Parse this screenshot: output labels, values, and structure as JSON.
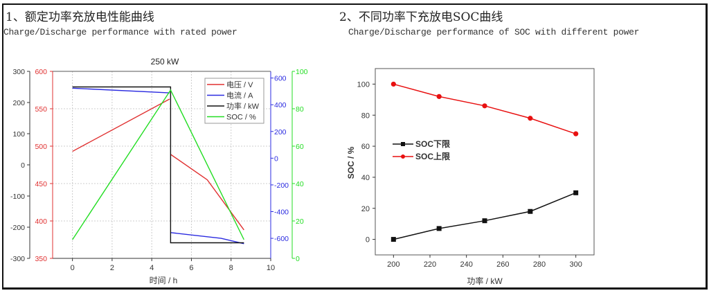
{
  "section1": {
    "title_cn": "1、额定功率充放电性能曲线",
    "title_en": "Charge/Discharge performance with rated power"
  },
  "section2": {
    "title_cn": "2、不同功率下充放电SOC曲线",
    "title_en": "Charge/Discharge performance of SOC with different power"
  },
  "colors": {
    "voltage": "#e03030",
    "current": "#2a2ae0",
    "power": "#111111",
    "soc": "#22dd22",
    "upper": "#e81010",
    "lower": "#111111"
  },
  "chart_data": [
    {
      "type": "line",
      "title": "250 kW",
      "xlabel": "时间 / h",
      "xlim": [
        -1,
        10
      ],
      "xticks": [
        "0",
        "2",
        "4",
        "6",
        "8",
        "10"
      ],
      "grid": true,
      "legend_position": "top-right",
      "axes": [
        {
          "id": "power",
          "side": "left-outer",
          "lim": [
            -300,
            300
          ],
          "ticks": [
            "300",
            "200",
            "100",
            "0",
            "-100",
            "-200",
            "-300"
          ]
        },
        {
          "id": "voltage",
          "side": "left-inner",
          "lim": [
            350,
            600
          ],
          "ticks": [
            "600",
            "550",
            "500",
            "450",
            "400",
            "350"
          ]
        },
        {
          "id": "current",
          "side": "right-inner",
          "lim": [
            -750,
            650
          ],
          "ticks": [
            "600",
            "400",
            "200",
            "0",
            "-200",
            "-400",
            "-600"
          ]
        },
        {
          "id": "soc",
          "side": "right-outer",
          "lim": [
            0,
            100
          ],
          "ticks": [
            "100",
            "80",
            "60",
            "40",
            "20",
            "0"
          ]
        }
      ],
      "series": [
        {
          "name": "电压 / V",
          "axis": "voltage",
          "segments": [
            [
              [
                0,
                493
              ],
              [
                4.9,
                563
              ]
            ],
            [
              [
                4.95,
                489
              ],
              [
                6.8,
                455
              ],
              [
                8.65,
                388
              ]
            ]
          ]
        },
        {
          "name": "电流 / A",
          "axis": "current",
          "segments": [
            [
              [
                0,
                524
              ],
              [
                4.9,
                489
              ]
            ],
            [
              [
                4.95,
                -557
              ],
              [
                7.5,
                -600
              ],
              [
                8.65,
                -640
              ]
            ]
          ]
        },
        {
          "name": "功率 / kW",
          "axis": "power",
          "segments": [
            [
              [
                0,
                250
              ],
              [
                4.95,
                250
              ],
              [
                4.95,
                -250
              ],
              [
                8.65,
                -250
              ]
            ]
          ]
        },
        {
          "name": "SOC / %",
          "axis": "soc",
          "segments": [
            [
              [
                0,
                10
              ],
              [
                4.95,
                90
              ],
              [
                8.65,
                10
              ]
            ]
          ]
        }
      ]
    },
    {
      "type": "line",
      "title": "",
      "xlabel": "功率 / kW",
      "ylabel": "SOC / %",
      "xlim": [
        190,
        310
      ],
      "ylim": [
        -10,
        110
      ],
      "xticks": [
        "200",
        "220",
        "240",
        "260",
        "280",
        "300"
      ],
      "yticks": [
        "0",
        "20",
        "40",
        "60",
        "80",
        "100"
      ],
      "grid": false,
      "legend_position": "center-left",
      "x": [
        200,
        225,
        250,
        275,
        300
      ],
      "series": [
        {
          "name": "SOC下限",
          "marker": "square",
          "values": [
            0,
            7,
            12,
            18,
            30
          ]
        },
        {
          "name": "SOC上限",
          "marker": "circle",
          "values": [
            100,
            92,
            86,
            78,
            68
          ]
        }
      ]
    }
  ]
}
